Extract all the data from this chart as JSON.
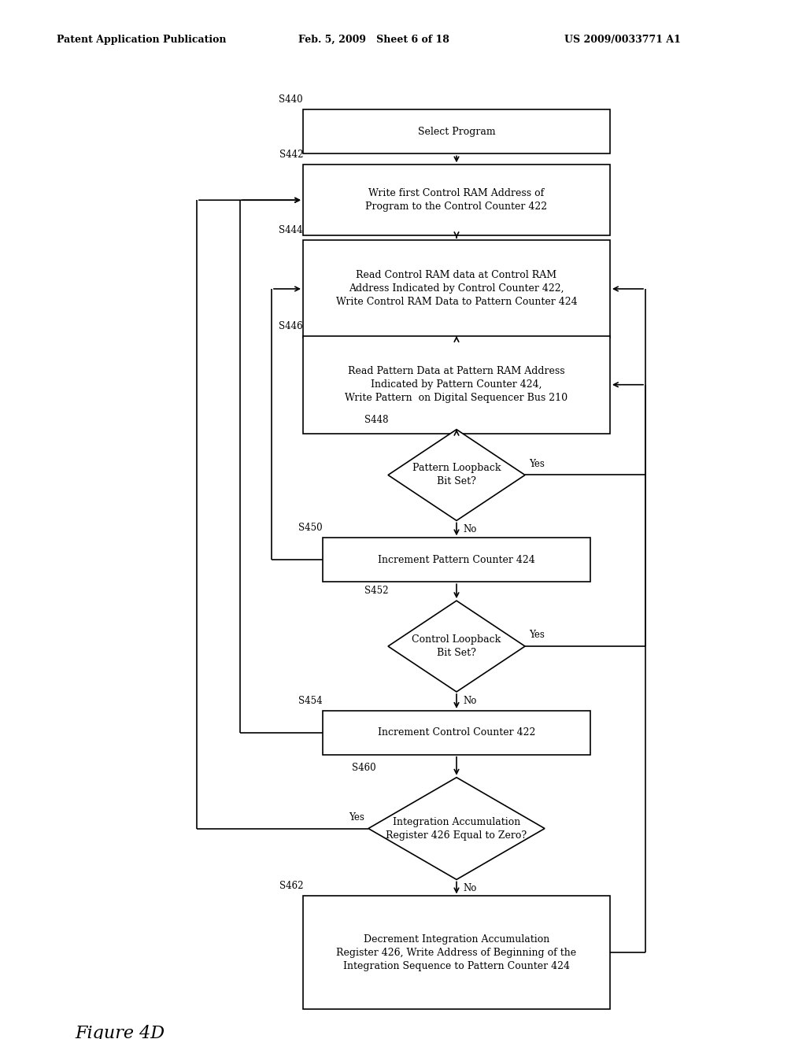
{
  "title_left": "Patent Application Publication",
  "title_mid": "Feb. 5, 2009   Sheet 6 of 18",
  "title_right": "US 2009/0033771 A1",
  "figure_label": "Figure 4D",
  "background_color": "#ffffff",
  "page_width": 10.24,
  "page_height": 13.2,
  "dpi": 100
}
